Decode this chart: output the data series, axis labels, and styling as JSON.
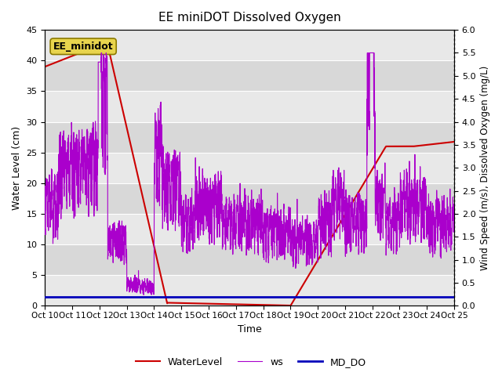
{
  "title": "EE miniDOT Dissolved Oxygen",
  "xlabel": "Time",
  "ylabel_left": "Water Level (cm)",
  "ylabel_right": "Wind Speed (m/s), Dissolved Oxygen (mg/L)",
  "xlim": [
    0,
    15
  ],
  "ylim_left": [
    0,
    45
  ],
  "ylim_right": [
    0,
    6.0
  ],
  "xtick_labels": [
    "Oct 10",
    "Oct 11",
    "Oct 12",
    "Oct 13",
    "Oct 14",
    "Oct 15",
    "Oct 16",
    "Oct 17",
    "Oct 18",
    "Oct 19",
    "Oct 20",
    "Oct 21",
    "Oct 22",
    "Oct 23",
    "Oct 24",
    "Oct 25"
  ],
  "annotation_text": "EE_minidot",
  "legend_entries": [
    "WaterLevel",
    "ws",
    "MD_DO"
  ],
  "legend_colors": [
    "#cc0000",
    "#9900cc",
    "#0000cc"
  ],
  "ws_color": "#aa00cc",
  "wl_color": "#cc0000",
  "do_color": "#0000bb",
  "band_colors": [
    "#d8d8d8",
    "#e8e8e8"
  ],
  "grid_color": "#ffffff"
}
